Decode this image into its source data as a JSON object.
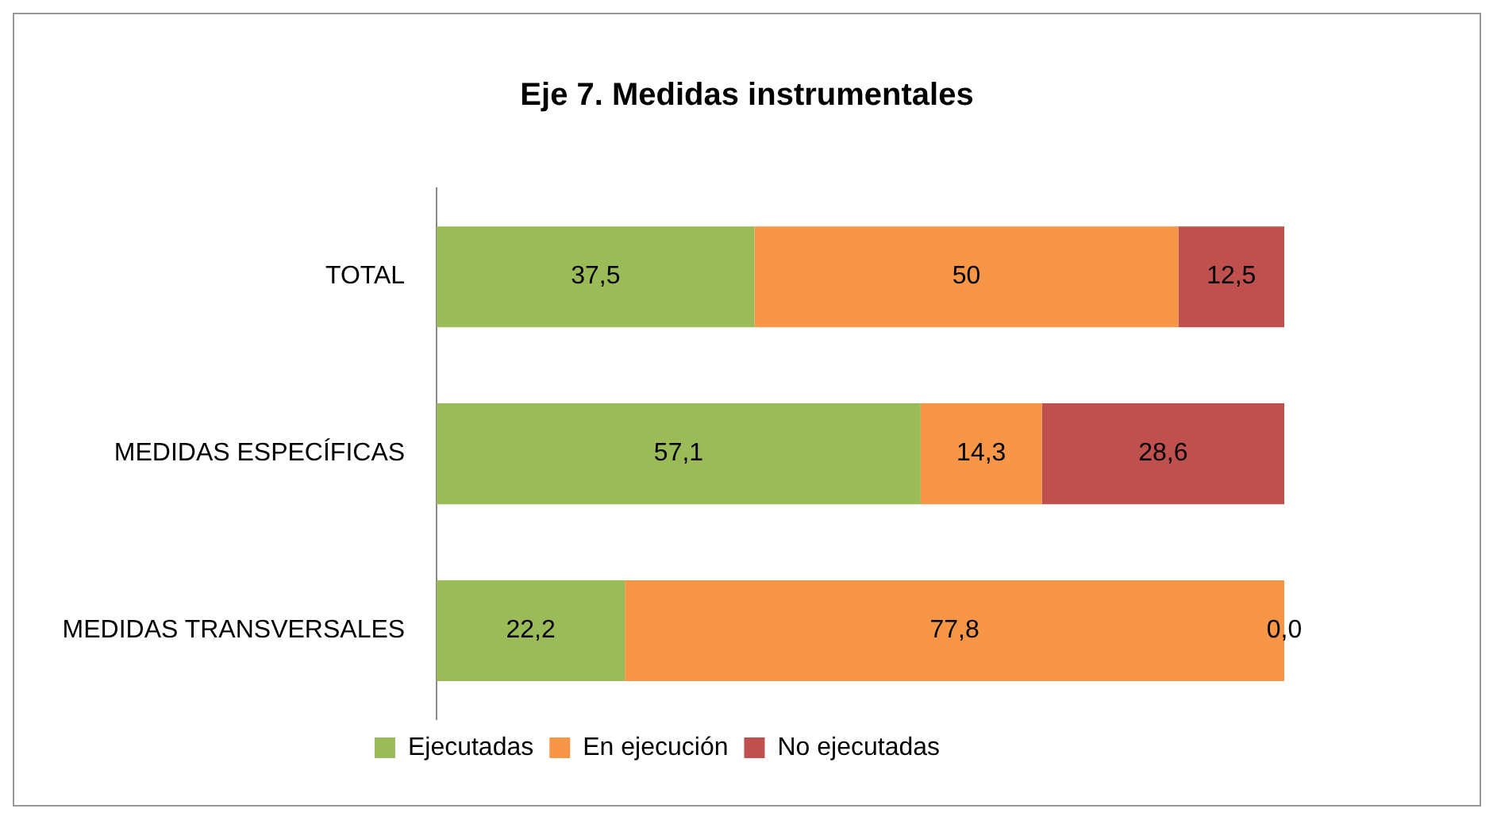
{
  "chart_data": {
    "type": "bar",
    "title": "Eje 7. Medidas instrumentales",
    "orientation": "horizontal",
    "stacked": true,
    "categories": [
      "TOTAL",
      "MEDIDAS ESPECÍFICAS",
      "MEDIDAS TRANSVERSALES"
    ],
    "series": [
      {
        "name": "Ejecutadas",
        "color": "#9bbb59",
        "values": [
          37.5,
          57.1,
          22.2
        ],
        "value_labels": [
          "37,5",
          "57,1",
          "22,2"
        ]
      },
      {
        "name": "En ejecución",
        "color": "#f79646",
        "values": [
          50,
          14.3,
          77.8
        ],
        "value_labels": [
          "50",
          "14,3",
          "77,8"
        ]
      },
      {
        "name": "No ejecutadas",
        "color": "#c0504d",
        "values": [
          12.5,
          28.6,
          0
        ],
        "value_labels": [
          "12,5",
          "28,6",
          "0,0"
        ]
      }
    ],
    "legend": "bottom"
  }
}
